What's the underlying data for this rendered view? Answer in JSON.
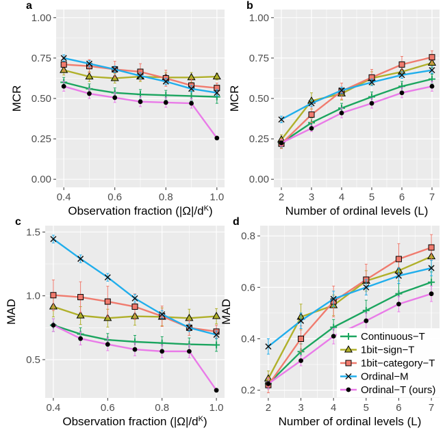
{
  "figure": {
    "panels": [
      {
        "letter": "a",
        "xlabel": "Observation fraction (|Ω|/d",
        "xlabel_sup": "K",
        "xlabel_end": ")",
        "ylabel": "MCR"
      },
      {
        "letter": "b",
        "xlabel": "Number of ordinal levels (L)",
        "xlabel_sup": "",
        "xlabel_end": "",
        "ylabel": "MCR"
      },
      {
        "letter": "c",
        "xlabel": "Observation fraction (|Ω|/d",
        "xlabel_sup": "K",
        "xlabel_end": ")",
        "ylabel": "MAD"
      },
      {
        "letter": "d",
        "xlabel": "Number of ordinal levels (L)",
        "xlabel_sup": "",
        "xlabel_end": "",
        "ylabel": "MAD"
      }
    ],
    "legend": [
      "Continuous−T",
      "1bit−sign−T",
      "1bit−category−T",
      "Ordinal−M",
      "Ordinal−T (ours)"
    ]
  },
  "colors": {
    "Continuous-T": "#1ba55f",
    "1bit-sign-T": "#b0b02a",
    "1bit-category-T": "#f07b6e",
    "Ordinal-M": "#20aeec",
    "Ordinal-T": "#e97ae8",
    "panel_bg": "#ebebeb",
    "grid": "#ffffff"
  },
  "chart_data": [
    {
      "type": "line",
      "panel": "a",
      "x": [
        0.4,
        0.5,
        0.6,
        0.7,
        0.8,
        0.9,
        1.0
      ],
      "xticks": [
        0.4,
        0.6,
        0.8,
        1.0
      ],
      "xtick_labels": [
        "0.4",
        "0.6",
        "0.8",
        "1.0"
      ],
      "xlim": [
        0.37,
        1.03
      ],
      "yticks": [
        0.0,
        0.25,
        0.5,
        0.75,
        1.0
      ],
      "ytick_labels": [
        "0.00",
        "0.25",
        "0.50",
        "0.75",
        "1.00"
      ],
      "ylim": [
        -0.05,
        1.05
      ],
      "xlabel": "Observation fraction (|Ω|/d^K)",
      "ylabel": "MCR",
      "series": [
        {
          "name": "Continuous−T",
          "values": [
            0.6,
            0.56,
            0.535,
            0.525,
            0.52,
            0.515,
            0.51
          ],
          "err": [
            0.03,
            0.03,
            0.03,
            0.03,
            0.03,
            0.03,
            0.04
          ]
        },
        {
          "name": "1bit−sign−T",
          "values": [
            0.675,
            0.635,
            0.625,
            0.635,
            0.63,
            0.63,
            0.635
          ],
          "err": [
            0.03,
            0.03,
            0.03,
            0.03,
            0.03,
            0.03,
            0.02
          ]
        },
        {
          "name": "1bit−category−T",
          "values": [
            0.71,
            0.7,
            0.68,
            0.665,
            0.625,
            0.58,
            0.565
          ],
          "err": [
            0.04,
            0.04,
            0.05,
            0.05,
            0.05,
            0.04,
            0.03
          ]
        },
        {
          "name": "Ordinal−M",
          "values": [
            0.75,
            0.715,
            0.68,
            0.64,
            0.605,
            0.56,
            0.535
          ],
          "err": [
            0.02,
            0.02,
            0.02,
            0.02,
            0.02,
            0.02,
            0.02
          ]
        },
        {
          "name": "Ordinal−T (ours)",
          "values": [
            0.575,
            0.53,
            0.505,
            0.48,
            0.475,
            0.47,
            0.255
          ],
          "err": [
            0.03,
            0.03,
            0.03,
            0.03,
            0.03,
            0.03,
            0.01
          ]
        }
      ]
    },
    {
      "type": "line",
      "panel": "b",
      "x": [
        2,
        3,
        4,
        5,
        6,
        7
      ],
      "xticks": [
        2,
        3,
        4,
        5,
        6,
        7
      ],
      "xtick_labels": [
        "2",
        "3",
        "4",
        "5",
        "6",
        "7"
      ],
      "xlim": [
        1.75,
        7.25
      ],
      "yticks": [
        0.0,
        0.25,
        0.5,
        0.75,
        1.0
      ],
      "ytick_labels": [
        "0.00",
        "0.25",
        "0.50",
        "0.75",
        "1.00"
      ],
      "ylim": [
        -0.05,
        1.05
      ],
      "xlabel": "Number of ordinal levels (L)",
      "ylabel": "MCR",
      "series": [
        {
          "name": "Continuous−T",
          "values": [
            0.225,
            0.35,
            0.44,
            0.51,
            0.575,
            0.62
          ],
          "err": [
            0.03,
            0.03,
            0.03,
            0.03,
            0.03,
            0.03
          ]
        },
        {
          "name": "1bit−sign−T",
          "values": [
            0.245,
            0.485,
            0.53,
            0.625,
            0.665,
            0.72
          ],
          "err": [
            0.03,
            0.05,
            0.04,
            0.04,
            0.04,
            0.03
          ]
        },
        {
          "name": "1bit−category−T",
          "values": [
            0.22,
            0.4,
            0.545,
            0.63,
            0.71,
            0.755
          ],
          "err": [
            0.03,
            0.05,
            0.05,
            0.05,
            0.05,
            0.04
          ]
        },
        {
          "name": "Ordinal−M",
          "values": [
            0.37,
            0.47,
            0.55,
            0.6,
            0.645,
            0.675
          ],
          "err": [
            0.02,
            0.02,
            0.02,
            0.02,
            0.02,
            0.02
          ]
        },
        {
          "name": "Ordinal−T (ours)",
          "values": [
            0.225,
            0.315,
            0.41,
            0.47,
            0.535,
            0.575
          ],
          "err": [
            0.02,
            0.02,
            0.03,
            0.03,
            0.03,
            0.03
          ]
        }
      ]
    },
    {
      "type": "line",
      "panel": "c",
      "x": [
        0.4,
        0.5,
        0.6,
        0.7,
        0.8,
        0.9,
        1.0
      ],
      "xticks": [
        0.4,
        0.6,
        0.8,
        1.0
      ],
      "xtick_labels": [
        "0.4",
        "0.6",
        "0.8",
        "1.0"
      ],
      "xlim": [
        0.37,
        1.03
      ],
      "yticks": [
        0.5,
        1.0,
        1.5
      ],
      "ytick_labels": [
        "0.5",
        "1.0",
        "1.5"
      ],
      "ylim": [
        0.2,
        1.55
      ],
      "xlabel": "Observation fraction (|Ω|/d^K)",
      "ylabel": "MAD",
      "series": [
        {
          "name": "Continuous−T",
          "values": [
            0.77,
            0.7,
            0.655,
            0.64,
            0.63,
            0.62,
            0.615
          ],
          "err": [
            0.05,
            0.05,
            0.05,
            0.05,
            0.05,
            0.05,
            0.05
          ]
        },
        {
          "name": "1bit−sign−T",
          "values": [
            0.915,
            0.845,
            0.825,
            0.84,
            0.835,
            0.825,
            0.84
          ],
          "err": [
            0.08,
            0.07,
            0.07,
            0.07,
            0.07,
            0.07,
            0.06
          ]
        },
        {
          "name": "1bit−category−T",
          "values": [
            1.005,
            0.99,
            0.955,
            0.915,
            0.84,
            0.75,
            0.72
          ],
          "err": [
            0.12,
            0.12,
            0.12,
            0.1,
            0.08,
            0.06,
            0.05
          ]
        },
        {
          "name": "Ordinal−M",
          "values": [
            1.445,
            1.29,
            1.145,
            0.98,
            0.855,
            0.75,
            0.695
          ],
          "err": [
            0.03,
            0.03,
            0.03,
            0.03,
            0.03,
            0.03,
            0.03
          ]
        },
        {
          "name": "Ordinal−T (ours)",
          "values": [
            0.77,
            0.665,
            0.62,
            0.58,
            0.565,
            0.565,
            0.26
          ],
          "err": [
            0.05,
            0.05,
            0.05,
            0.05,
            0.05,
            0.05,
            0.01
          ]
        }
      ]
    },
    {
      "type": "line",
      "panel": "d",
      "x": [
        2,
        3,
        4,
        5,
        6,
        7
      ],
      "xticks": [
        2,
        3,
        4,
        5,
        6,
        7
      ],
      "xtick_labels": [
        "2",
        "3",
        "4",
        "5",
        "6",
        "7"
      ],
      "xlim": [
        1.75,
        7.25
      ],
      "yticks": [
        0.2,
        0.4,
        0.6,
        0.8
      ],
      "ytick_labels": [
        "0.2",
        "0.4",
        "0.6",
        "0.8"
      ],
      "ylim": [
        0.17,
        0.84
      ],
      "xlabel": "Number of ordinal levels (L)",
      "ylabel": "MAD",
      "series": [
        {
          "name": "Continuous−T",
          "values": [
            0.225,
            0.35,
            0.445,
            0.51,
            0.575,
            0.62
          ],
          "err": [
            0.02,
            0.03,
            0.03,
            0.04,
            0.04,
            0.04
          ]
        },
        {
          "name": "1bit−sign−T",
          "values": [
            0.245,
            0.485,
            0.53,
            0.625,
            0.665,
            0.72
          ],
          "err": [
            0.03,
            0.05,
            0.04,
            0.04,
            0.04,
            0.04
          ]
        },
        {
          "name": "1bit−category−T",
          "values": [
            0.22,
            0.4,
            0.545,
            0.63,
            0.71,
            0.755
          ],
          "err": [
            0.03,
            0.05,
            0.06,
            0.06,
            0.06,
            0.05
          ]
        },
        {
          "name": "Ordinal−M",
          "values": [
            0.37,
            0.47,
            0.555,
            0.6,
            0.645,
            0.675
          ],
          "err": [
            0.03,
            0.03,
            0.03,
            0.03,
            0.03,
            0.03
          ]
        },
        {
          "name": "Ordinal−T (ours)",
          "values": [
            0.225,
            0.315,
            0.41,
            0.47,
            0.535,
            0.575
          ],
          "err": [
            0.02,
            0.02,
            0.03,
            0.03,
            0.03,
            0.03
          ]
        }
      ],
      "legend_position": "bottom-right"
    }
  ]
}
